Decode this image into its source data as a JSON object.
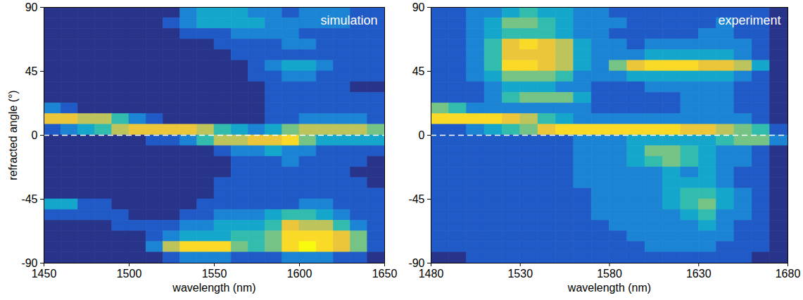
{
  "chart_data": [
    {
      "type": "heatmap",
      "annotation": "simulation",
      "xlabel": "wavelength (nm)",
      "ylabel": "refracted angle (°)",
      "xlim": [
        1450,
        1650
      ],
      "ylim": [
        -90,
        90
      ],
      "xticks": [
        1450,
        1500,
        1550,
        1600,
        1650
      ],
      "yticks": [
        -90,
        -45,
        0,
        45,
        90
      ],
      "reference_y": 0,
      "line_style": "dashed",
      "clim": [
        0,
        9
      ],
      "x": [
        1455,
        1465,
        1475,
        1485,
        1495,
        1505,
        1515,
        1525,
        1535,
        1545,
        1555,
        1565,
        1575,
        1585,
        1595,
        1605,
        1615,
        1625,
        1635,
        1645
      ],
      "y": [
        86.25,
        78.75,
        71.25,
        63.75,
        56.25,
        48.75,
        41.25,
        33.75,
        26.25,
        18.75,
        11.25,
        3.75,
        -3.75,
        -11.25,
        -18.75,
        -26.25,
        -33.75,
        -41.25,
        -48.75,
        -56.25,
        -63.75,
        -71.25,
        -78.75,
        -86.25
      ],
      "values": [
        [
          0,
          0,
          0,
          0,
          0,
          0,
          0,
          0,
          2,
          3,
          3,
          3,
          2,
          2,
          1,
          2,
          2,
          2,
          1,
          1
        ],
        [
          0,
          0,
          0,
          0,
          0,
          0,
          0,
          1,
          2,
          3,
          3,
          3,
          3,
          2,
          2,
          2,
          2,
          2,
          1,
          1
        ],
        [
          0,
          0,
          0,
          0,
          0,
          0,
          0,
          0,
          1,
          1,
          1,
          2,
          2,
          2,
          2,
          1,
          1,
          1,
          1,
          1
        ],
        [
          0,
          0,
          0,
          0,
          0,
          0,
          0,
          0,
          0,
          0,
          1,
          1,
          1,
          1,
          2,
          2,
          1,
          1,
          1,
          1
        ],
        [
          0,
          0,
          0,
          0,
          0,
          0,
          0,
          0,
          0,
          0,
          0,
          1,
          1,
          1,
          1,
          1,
          1,
          1,
          1,
          1
        ],
        [
          0,
          0,
          0,
          0,
          0,
          0,
          0,
          0,
          0,
          0,
          0,
          0,
          1,
          2,
          3,
          3,
          2,
          1,
          1,
          1
        ],
        [
          0,
          0,
          0,
          0,
          0,
          0,
          0,
          0,
          0,
          0,
          0,
          0,
          1,
          1,
          2,
          2,
          1,
          1,
          1,
          1
        ],
        [
          0,
          0,
          0,
          0,
          0,
          0,
          0,
          0,
          0,
          0,
          0,
          0,
          0,
          1,
          1,
          1,
          1,
          1,
          0,
          0
        ],
        [
          0,
          0,
          0,
          0,
          0,
          0,
          0,
          0,
          0,
          0,
          0,
          0,
          0,
          1,
          1,
          1,
          1,
          1,
          1,
          1
        ],
        [
          2,
          1,
          0,
          0,
          0,
          0,
          0,
          0,
          0,
          0,
          0,
          0,
          0,
          1,
          1,
          1,
          1,
          1,
          1,
          1
        ],
        [
          7,
          7,
          6,
          6,
          4,
          2,
          1,
          0,
          0,
          0,
          0,
          0,
          0,
          1,
          1,
          2,
          2,
          2,
          2,
          1
        ],
        [
          1,
          2,
          3,
          4,
          6,
          7,
          7,
          7,
          7,
          6,
          4,
          3,
          2,
          3,
          5,
          6,
          6,
          6,
          6,
          5
        ],
        [
          0,
          0,
          0,
          0,
          0,
          0,
          1,
          1,
          2,
          4,
          6,
          6,
          7,
          7,
          8,
          5,
          3,
          3,
          3,
          3
        ],
        [
          0,
          0,
          0,
          0,
          0,
          0,
          0,
          0,
          0,
          0,
          1,
          2,
          2,
          3,
          2,
          2,
          1,
          1,
          1,
          1
        ],
        [
          0,
          0,
          0,
          0,
          0,
          0,
          0,
          0,
          0,
          0,
          0,
          1,
          1,
          1,
          2,
          1,
          1,
          1,
          1,
          0
        ],
        [
          0,
          0,
          0,
          0,
          0,
          0,
          0,
          0,
          0,
          0,
          0,
          1,
          1,
          1,
          1,
          1,
          1,
          1,
          0,
          0
        ],
        [
          0,
          0,
          0,
          0,
          0,
          0,
          0,
          0,
          0,
          0,
          1,
          1,
          1,
          1,
          1,
          1,
          1,
          1,
          1,
          0
        ],
        [
          0,
          0,
          0,
          0,
          0,
          0,
          0,
          0,
          0,
          0,
          1,
          1,
          1,
          1,
          1,
          1,
          1,
          1,
          1,
          1
        ],
        [
          3,
          3,
          1,
          1,
          0,
          0,
          0,
          0,
          0,
          1,
          1,
          1,
          1,
          1,
          1,
          2,
          2,
          1,
          1,
          1
        ],
        [
          1,
          1,
          1,
          1,
          1,
          0,
          0,
          0,
          1,
          1,
          2,
          2,
          2,
          3,
          4,
          4,
          3,
          2,
          1,
          1
        ],
        [
          0,
          0,
          0,
          0,
          1,
          1,
          1,
          1,
          2,
          2,
          3,
          3,
          3,
          4,
          7,
          6,
          6,
          4,
          2,
          1
        ],
        [
          0,
          0,
          0,
          0,
          0,
          0,
          1,
          2,
          3,
          3,
          3,
          4,
          4,
          5,
          8,
          8,
          8,
          7,
          5,
          1
        ],
        [
          0,
          0,
          0,
          0,
          0,
          0,
          2,
          6,
          8,
          8,
          8,
          5,
          4,
          5,
          8,
          9,
          8,
          7,
          5,
          1
        ],
        [
          0,
          0,
          0,
          0,
          0,
          0,
          0,
          1,
          2,
          2,
          2,
          1,
          1,
          1,
          2,
          2,
          2,
          1,
          1,
          0
        ]
      ]
    },
    {
      "type": "heatmap",
      "annotation": "experiment",
      "xlabel": "wavelength (nm)",
      "xlim": [
        1480,
        1680
      ],
      "ylim": [
        -90,
        90
      ],
      "xticks": [
        1480,
        1530,
        1580,
        1630,
        1680
      ],
      "yticks": [
        -90,
        -45,
        0,
        45,
        90
      ],
      "reference_y": 0,
      "line_style": "dashed",
      "clim": [
        0,
        9
      ],
      "x": [
        1485,
        1495,
        1505,
        1515,
        1525,
        1535,
        1545,
        1555,
        1565,
        1575,
        1585,
        1595,
        1605,
        1615,
        1625,
        1635,
        1645,
        1655,
        1665,
        1675
      ],
      "y": [
        86.25,
        78.75,
        71.25,
        63.75,
        56.25,
        48.75,
        41.25,
        33.75,
        26.25,
        18.75,
        11.25,
        3.75,
        -3.75,
        -11.25,
        -18.75,
        -26.25,
        -33.75,
        -41.25,
        -48.75,
        -56.25,
        -63.75,
        -71.25,
        -78.75,
        -86.25
      ],
      "values": [
        [
          1,
          1,
          2,
          2,
          3,
          4,
          3,
          3,
          2,
          2,
          1,
          1,
          1,
          1,
          1,
          1,
          1,
          1,
          1,
          0
        ],
        [
          1,
          1,
          2,
          3,
          5,
          5,
          4,
          3,
          2,
          2,
          2,
          1,
          1,
          1,
          1,
          1,
          2,
          1,
          1,
          0
        ],
        [
          1,
          1,
          2,
          3,
          4,
          4,
          4,
          3,
          2,
          2,
          1,
          1,
          1,
          1,
          1,
          2,
          2,
          1,
          1,
          0
        ],
        [
          1,
          1,
          2,
          4,
          7,
          8,
          7,
          6,
          3,
          2,
          2,
          1,
          2,
          2,
          2,
          2,
          2,
          2,
          1,
          0
        ],
        [
          1,
          1,
          2,
          4,
          7,
          7,
          7,
          6,
          3,
          2,
          2,
          2,
          3,
          3,
          3,
          3,
          3,
          2,
          1,
          0
        ],
        [
          1,
          1,
          2,
          4,
          8,
          8,
          7,
          6,
          3,
          2,
          5,
          7,
          8,
          8,
          8,
          7,
          7,
          6,
          3,
          0
        ],
        [
          1,
          1,
          2,
          3,
          5,
          5,
          5,
          4,
          2,
          2,
          2,
          3,
          3,
          3,
          3,
          3,
          3,
          2,
          1,
          0
        ],
        [
          1,
          1,
          1,
          2,
          3,
          3,
          3,
          2,
          2,
          1,
          1,
          1,
          2,
          2,
          2,
          2,
          2,
          1,
          1,
          0
        ],
        [
          1,
          1,
          1,
          2,
          4,
          5,
          5,
          5,
          3,
          1,
          1,
          1,
          1,
          1,
          2,
          2,
          2,
          1,
          1,
          0
        ],
        [
          5,
          4,
          2,
          2,
          2,
          2,
          2,
          2,
          2,
          1,
          1,
          1,
          1,
          1,
          2,
          2,
          2,
          1,
          1,
          0
        ],
        [
          8,
          8,
          8,
          8,
          7,
          6,
          4,
          3,
          2,
          2,
          2,
          2,
          2,
          2,
          2,
          2,
          2,
          2,
          1,
          0
        ],
        [
          1,
          1,
          2,
          3,
          4,
          5,
          7,
          8,
          8,
          8,
          8,
          8,
          8,
          8,
          7,
          7,
          6,
          5,
          4,
          1
        ],
        [
          1,
          1,
          1,
          1,
          1,
          1,
          1,
          1,
          2,
          2,
          2,
          3,
          3,
          3,
          3,
          3,
          4,
          5,
          5,
          2
        ],
        [
          1,
          1,
          1,
          1,
          1,
          1,
          1,
          1,
          2,
          2,
          2,
          3,
          5,
          5,
          4,
          3,
          2,
          2,
          1,
          0
        ],
        [
          1,
          1,
          1,
          1,
          1,
          1,
          1,
          1,
          2,
          2,
          2,
          3,
          4,
          5,
          4,
          3,
          2,
          2,
          1,
          0
        ],
        [
          1,
          1,
          1,
          1,
          1,
          1,
          1,
          1,
          2,
          2,
          2,
          2,
          2,
          3,
          2,
          3,
          2,
          1,
          1,
          0
        ],
        [
          1,
          1,
          1,
          1,
          1,
          1,
          1,
          1,
          2,
          2,
          2,
          2,
          2,
          3,
          3,
          3,
          2,
          1,
          1,
          0
        ],
        [
          1,
          1,
          1,
          1,
          1,
          1,
          1,
          1,
          1,
          2,
          2,
          2,
          2,
          3,
          4,
          4,
          3,
          2,
          1,
          0
        ],
        [
          1,
          1,
          1,
          1,
          1,
          1,
          1,
          1,
          1,
          2,
          2,
          2,
          2,
          3,
          4,
          5,
          3,
          2,
          1,
          0
        ],
        [
          1,
          1,
          1,
          1,
          1,
          1,
          1,
          1,
          1,
          2,
          2,
          2,
          2,
          2,
          3,
          4,
          2,
          2,
          1,
          0
        ],
        [
          1,
          1,
          1,
          1,
          1,
          1,
          1,
          1,
          1,
          1,
          2,
          2,
          2,
          2,
          2,
          3,
          2,
          1,
          1,
          0
        ],
        [
          1,
          1,
          1,
          1,
          1,
          1,
          1,
          1,
          1,
          1,
          1,
          2,
          2,
          2,
          2,
          2,
          2,
          1,
          1,
          0
        ],
        [
          1,
          1,
          1,
          1,
          1,
          1,
          1,
          1,
          1,
          1,
          1,
          1,
          2,
          2,
          2,
          2,
          1,
          1,
          1,
          0
        ],
        [
          0,
          0,
          1,
          1,
          1,
          1,
          1,
          1,
          1,
          1,
          1,
          1,
          1,
          1,
          1,
          1,
          1,
          1,
          0,
          0
        ]
      ]
    }
  ]
}
